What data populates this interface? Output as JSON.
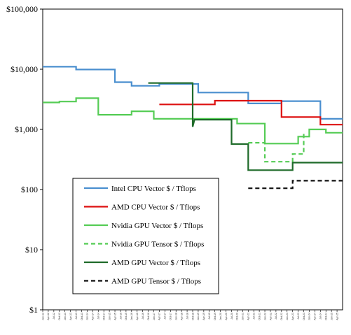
{
  "chart_data": {
    "type": "line",
    "yscale": "log",
    "ylim": [
      1,
      100000
    ],
    "yticks": [
      {
        "value": 1,
        "label": "$1"
      },
      {
        "value": 10,
        "label": "$10"
      },
      {
        "value": 100,
        "label": "$100"
      },
      {
        "value": 1000,
        "label": "$1,000"
      },
      {
        "value": 10000,
        "label": "$10,000"
      },
      {
        "value": 100000,
        "label": "$100,000"
      }
    ],
    "xlim": [
      "2012-01",
      "2025-07"
    ],
    "xticks": [
      "Jan-12",
      "Apr-12",
      "Jul-12",
      "Oct-12",
      "Jan-13",
      "Apr-13",
      "Jul-13",
      "Oct-13",
      "Jan-14",
      "Apr-14",
      "Jul-14",
      "Oct-14",
      "Jan-15",
      "Apr-15",
      "Jul-15",
      "Oct-15",
      "Jan-16",
      "Apr-16",
      "Jul-16",
      "Oct-16",
      "Jan-17",
      "Apr-17",
      "Jul-17",
      "Oct-17",
      "Jan-18",
      "Apr-18",
      "Jul-18",
      "Oct-18",
      "Jan-19",
      "Apr-19",
      "Jul-19",
      "Oct-19",
      "Jan-20",
      "Apr-20",
      "Jul-20",
      "Oct-20",
      "Jan-21",
      "Apr-21",
      "Jul-21",
      "Oct-21",
      "Jan-22",
      "Apr-22",
      "Jul-22",
      "Oct-22",
      "Jan-23",
      "Apr-23",
      "Jul-23",
      "Oct-23",
      "Jan-24",
      "Apr-24",
      "Jul-24",
      "Oct-24",
      "Jan-25",
      "Apr-25"
    ],
    "grid": false,
    "legend_position": "lower-left",
    "series": [
      {
        "name": "Intel CPU Vector $ / Tflops",
        "color": "#4a8fcf",
        "dash": "solid",
        "points": [
          [
            "2012-01",
            11000
          ],
          [
            "2013-07",
            11000
          ],
          [
            "2013-07",
            9900
          ],
          [
            "2015-04",
            9900
          ],
          [
            "2015-04",
            6100
          ],
          [
            "2016-01",
            6100
          ],
          [
            "2016-01",
            5300
          ],
          [
            "2017-04",
            5300
          ],
          [
            "2017-04",
            5700
          ],
          [
            "2019-01",
            5700
          ],
          [
            "2019-01",
            4100
          ],
          [
            "2021-04",
            4100
          ],
          [
            "2021-04",
            2700
          ],
          [
            "2022-10",
            2700
          ],
          [
            "2022-10",
            2950
          ],
          [
            "2024-07",
            2950
          ],
          [
            "2024-07",
            1500
          ],
          [
            "2025-07",
            1500
          ]
        ]
      },
      {
        "name": "AMD CPU Vector $ / Tflops",
        "color": "#dd1111",
        "dash": "solid",
        "points": [
          [
            "2017-04",
            2600
          ],
          [
            "2019-10",
            2600
          ],
          [
            "2019-10",
            3000
          ],
          [
            "2022-10",
            3000
          ],
          [
            "2022-10",
            1600
          ],
          [
            "2024-07",
            1600
          ],
          [
            "2024-07",
            1200
          ],
          [
            "2025-07",
            1200
          ]
        ]
      },
      {
        "name": "Nvidia GPU Vector $ / Tflops",
        "color": "#55cc55",
        "dash": "solid",
        "points": [
          [
            "2012-01",
            2800
          ],
          [
            "2012-10",
            2800
          ],
          [
            "2012-10",
            2900
          ],
          [
            "2013-07",
            2900
          ],
          [
            "2013-07",
            3300
          ],
          [
            "2014-07",
            3300
          ],
          [
            "2014-07",
            1750
          ],
          [
            "2016-01",
            1750
          ],
          [
            "2016-01",
            2000
          ],
          [
            "2017-01",
            2000
          ],
          [
            "2017-01",
            1500
          ],
          [
            "2020-10",
            1500
          ],
          [
            "2020-10",
            1250
          ],
          [
            "2022-01",
            1250
          ],
          [
            "2022-01",
            580
          ],
          [
            "2023-07",
            580
          ],
          [
            "2023-07",
            760
          ],
          [
            "2024-01",
            760
          ],
          [
            "2024-01",
            1000
          ],
          [
            "2024-10",
            1000
          ],
          [
            "2024-10",
            880
          ],
          [
            "2025-07",
            880
          ]
        ]
      },
      {
        "name": "Nvidia  GPU Tensor $ / Tflops",
        "color": "#55cc55",
        "dash": "dashed",
        "points": [
          [
            "2021-04",
            600
          ],
          [
            "2022-01",
            600
          ],
          [
            "2022-01",
            290
          ],
          [
            "2023-04",
            290
          ],
          [
            "2023-04",
            390
          ],
          [
            "2023-10",
            390
          ],
          [
            "2023-10",
            900
          ]
        ]
      },
      {
        "name": "AMD GPU Vector $ / Tflops",
        "color": "#1f6b2a",
        "dash": "solid",
        "points": [
          [
            "2016-10",
            5900
          ],
          [
            "2018-10",
            5900
          ],
          [
            "2018-10",
            1100
          ],
          [
            "2018-11",
            1450
          ],
          [
            "2020-07",
            1450
          ],
          [
            "2020-07",
            570
          ],
          [
            "2021-04",
            570
          ],
          [
            "2021-04",
            210
          ],
          [
            "2023-04",
            210
          ],
          [
            "2023-04",
            280
          ],
          [
            "2025-07",
            280
          ]
        ]
      },
      {
        "name": "AMD GPU Tensor $ / Tflops",
        "color": "#111111",
        "dash": "dashed",
        "points": [
          [
            "2021-04",
            105
          ],
          [
            "2023-04",
            105
          ],
          [
            "2023-04",
            140
          ],
          [
            "2025-07",
            140
          ]
        ]
      }
    ]
  }
}
